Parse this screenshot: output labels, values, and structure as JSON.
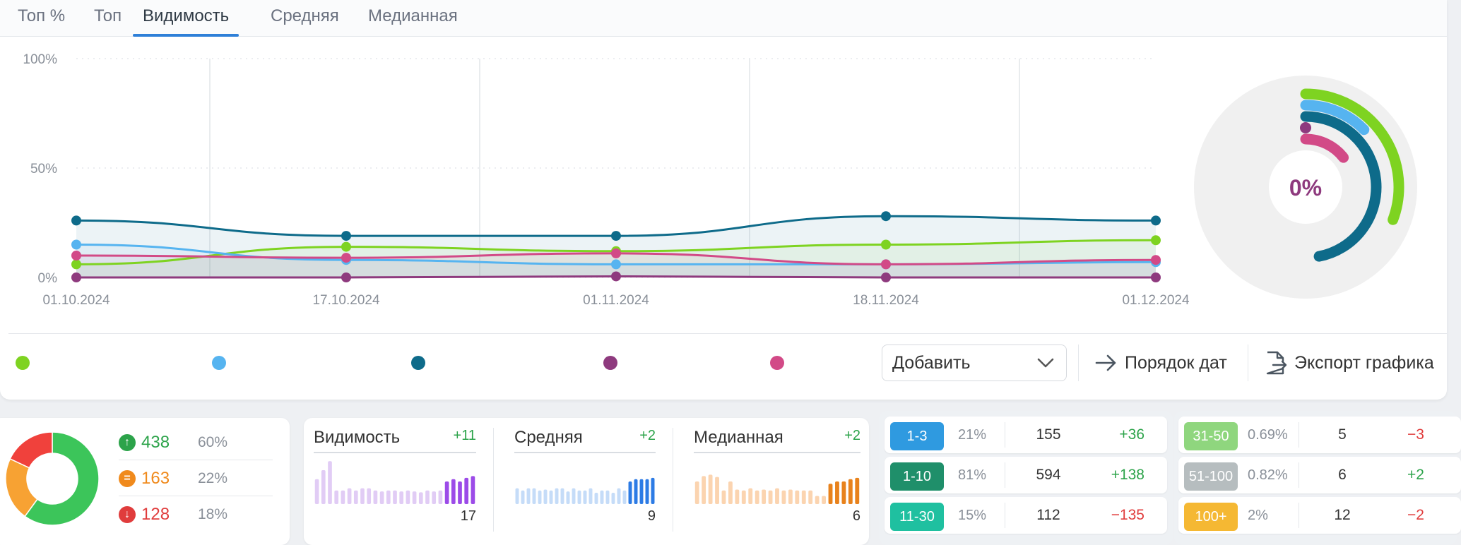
{
  "tabs": [
    {
      "label": "Топ %"
    },
    {
      "label": "Топ"
    },
    {
      "label": "Видимость"
    },
    {
      "label": "Средняя"
    },
    {
      "label": "Медианная"
    }
  ],
  "active_tab": "Видимость",
  "chart_data": {
    "type": "line",
    "x": [
      "01.10.2024",
      "17.10.2024",
      "01.11.2024",
      "18.11.2024",
      "01.12.2024"
    ],
    "x_tick_labels": [
      "01.10.2024",
      "17.10.2024",
      "01.11.2024",
      "18.11.2024",
      "01.12.2024"
    ],
    "y_tick_labels": [
      "100%",
      "50%",
      "0%"
    ],
    "ylim": [
      0,
      100
    ],
    "grid": true,
    "series": [
      {
        "color": "#7ed321",
        "values": [
          6,
          14,
          12,
          15,
          17
        ]
      },
      {
        "color": "#56b4f0",
        "values": [
          15,
          8,
          6,
          6,
          7
        ]
      },
      {
        "color": "#0e6b8a",
        "values": [
          26,
          19,
          19,
          28,
          26
        ]
      },
      {
        "color": "#8e3a7e",
        "values": [
          0,
          0,
          0.5,
          0,
          0
        ]
      },
      {
        "color": "#d24a87",
        "values": [
          10,
          9,
          11,
          6,
          8
        ]
      }
    ]
  },
  "radial": {
    "center_label": "0%",
    "arcs": [
      {
        "color": "#7ed321",
        "value": 17
      },
      {
        "color": "#56b4f0",
        "value": 7
      },
      {
        "color": "#0e6b8a",
        "value": 26
      },
      {
        "color": "#8e3a7e",
        "value": 0
      },
      {
        "color": "#d24a87",
        "value": 8
      }
    ]
  },
  "controls": {
    "add_label": "Добавить",
    "order_label": "Порядок дат",
    "export_label": "Экспорт графика"
  },
  "summary": {
    "donut": [
      {
        "label": "up",
        "value": 60,
        "color": "#3cc55a"
      },
      {
        "label": "same",
        "value": 22,
        "color": "#f7a233"
      },
      {
        "label": "down",
        "value": 18,
        "color": "#f0413c"
      }
    ],
    "rows": [
      {
        "count": "438",
        "percent": "60%",
        "color": "#2ca34a",
        "icon_color": "#2ca34a",
        "icon": "arrow-up-icon"
      },
      {
        "count": "163",
        "percent": "22%",
        "color": "#f08a1c",
        "icon_color": "#f08a1c",
        "icon": "equals-icon"
      },
      {
        "count": "128",
        "percent": "18%",
        "color": "#e03c3c",
        "icon_color": "#e03c3c",
        "icon": "arrow-down-icon"
      }
    ]
  },
  "mini_charts": [
    {
      "title": "Видимость",
      "delta": "+11",
      "value": "17",
      "light": "#e1ccf5",
      "dark": "#9c4be8",
      "bars": [
        0.55,
        0.75,
        0.95,
        0.3,
        0.3,
        0.35,
        0.3,
        0.35,
        0.35,
        0.3,
        0.28,
        0.3,
        0.3,
        0.28,
        0.3,
        0.28,
        0.26,
        0.3,
        0.28,
        0.3,
        0.5,
        0.55,
        0.5,
        0.58,
        0.62
      ]
    },
    {
      "title": "Средняя",
      "delta": "+2",
      "value": "9",
      "light": "#c5dcf8",
      "dark": "#2c7be5",
      "bars": [
        0.35,
        0.3,
        0.35,
        0.35,
        0.3,
        0.32,
        0.3,
        0.35,
        0.35,
        0.28,
        0.35,
        0.3,
        0.3,
        0.35,
        0.25,
        0.3,
        0.3,
        0.25,
        0.35,
        0.3,
        0.5,
        0.55,
        0.55,
        0.55,
        0.58
      ]
    },
    {
      "title": "Медианная",
      "delta": "+2",
      "value": "6",
      "light": "#fbd4b0",
      "dark": "#e8821c",
      "bars": [
        0.5,
        0.62,
        0.65,
        0.6,
        0.3,
        0.5,
        0.32,
        0.3,
        0.35,
        0.3,
        0.32,
        0.3,
        0.35,
        0.3,
        0.32,
        0.3,
        0.3,
        0.3,
        0.18,
        0.18,
        0.45,
        0.5,
        0.5,
        0.55,
        0.58
      ]
    }
  ],
  "ranks_left": [
    {
      "range": "1-3",
      "badge_color": "#2f9ae0",
      "percent": "21%",
      "count": "155",
      "delta": "+36",
      "dir": "pos"
    },
    {
      "range": "1-10",
      "badge_color": "#1f8f6a",
      "percent": "81%",
      "count": "594",
      "delta": "+138",
      "dir": "pos"
    },
    {
      "range": "11-30",
      "badge_color": "#1fc0a0",
      "percent": "15%",
      "count": "112",
      "delta": "−135",
      "dir": "neg"
    }
  ],
  "ranks_right": [
    {
      "range": "31-50",
      "badge_color": "#8fd67e",
      "percent": "0.69%",
      "count": "5",
      "delta": "−3",
      "dir": "neg"
    },
    {
      "range": "51-100",
      "badge_color": "#b6bdbf",
      "percent": "0.82%",
      "count": "6",
      "delta": "+2",
      "dir": "pos"
    },
    {
      "range": "100+",
      "badge_color": "#f5b833",
      "percent": "2%",
      "count": "12",
      "delta": "−2",
      "dir": "neg"
    }
  ]
}
